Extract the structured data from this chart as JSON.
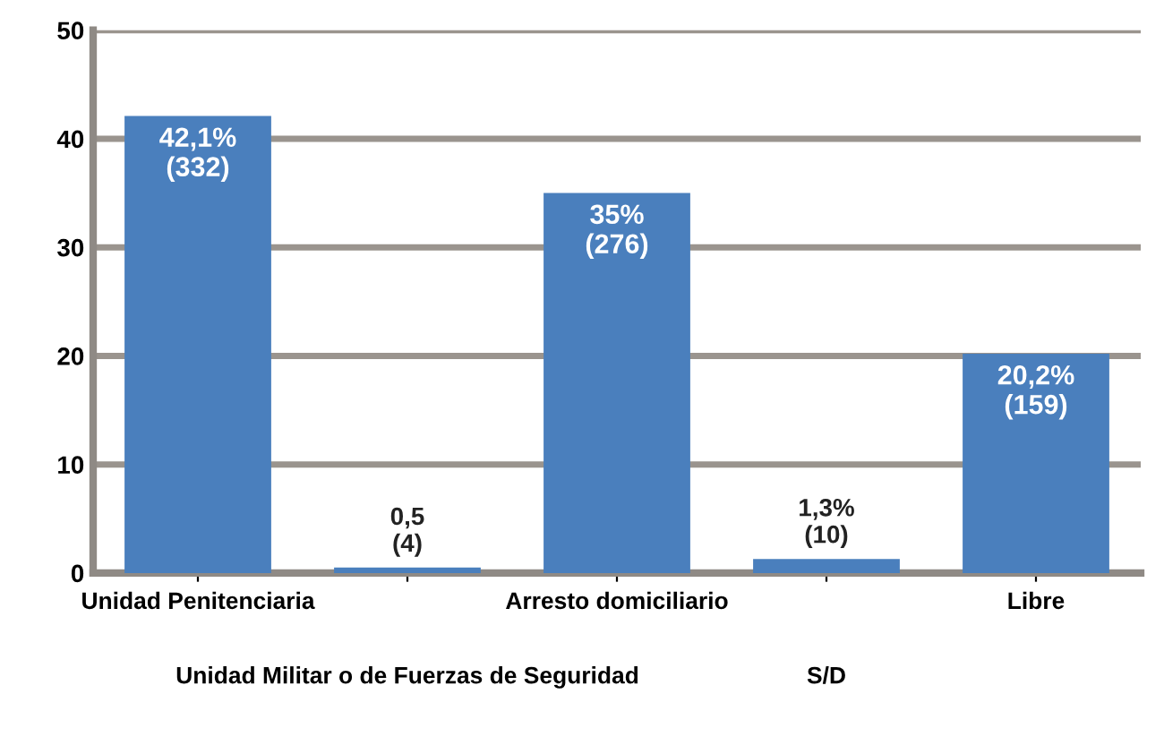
{
  "chart_data": {
    "type": "bar",
    "categories": [
      "Unidad Penitenciaria",
      "Unidad Militar o de Fuerzas de Seguridad",
      "Arresto domiciliario",
      "S/D",
      "Libre"
    ],
    "values": [
      42.1,
      0.5,
      35,
      1.3,
      20.2
    ],
    "value_labels": [
      "42,1%\n(332)",
      "0,5\n(4)",
      "35%\n(276)",
      "1,3%\n(10)",
      "20,2%\n(159)"
    ],
    "color": "#4a7fbd",
    "ylim": [
      0,
      50
    ],
    "yticks": [
      0,
      10,
      20,
      30,
      40,
      50
    ],
    "grid": "y"
  }
}
